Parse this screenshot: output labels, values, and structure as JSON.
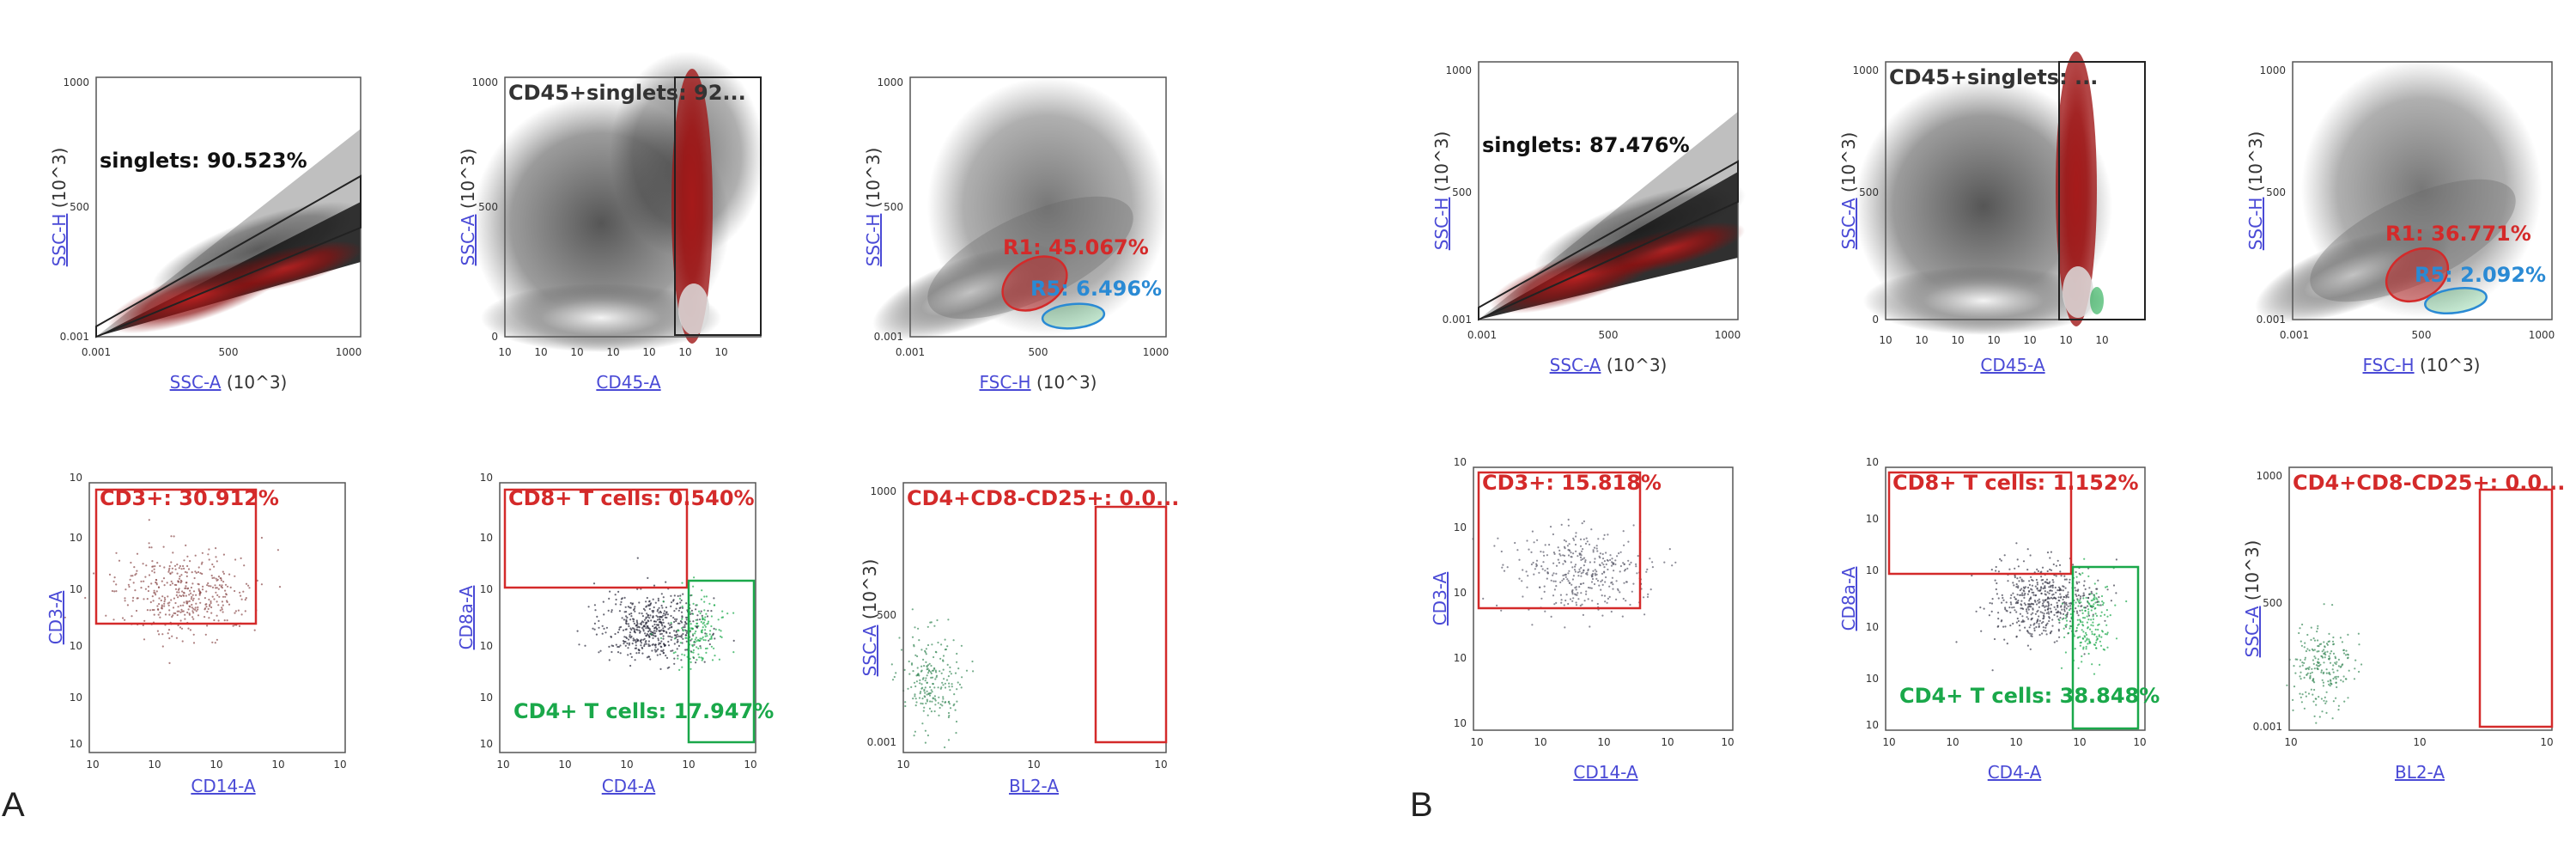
{
  "panel_labels": {
    "A": "A",
    "B": "B"
  },
  "axis_titles": {
    "ssc_h": "SSC-H",
    "ssc_a": "SSC-A",
    "cd45_a": "CD45-A",
    "fsc_h": "FSC-H",
    "cd3_a": "CD3-A",
    "cd14_a": "CD14-A",
    "cd8a_a": "CD8a-A",
    "cd4_a": "CD4-A",
    "bl2_a": "BL2-A",
    "unit": "(10^3)"
  },
  "ticks": {
    "linear_500": [
      "0.001",
      "500",
      "1000"
    ],
    "linear_500_short": [
      "0",
      "500",
      "1000"
    ],
    "log_x": [
      "10",
      "10",
      "10",
      "10",
      "10",
      "10",
      "10"
    ],
    "log_short": [
      "10",
      "10",
      "10",
      "10"
    ],
    "log_y": [
      "10",
      "10",
      "10",
      "10",
      "10",
      "10"
    ]
  },
  "colors": {
    "red_gate": "#d42a2a",
    "green_gate": "#1aa84a",
    "blue_gate": "#2a8ad4",
    "dense_red": "#a01818",
    "dense_black": "#111111",
    "axis_link": "#4a4ad6"
  },
  "chart_data": [
    {
      "id": "A1",
      "type": "scatter",
      "title": "",
      "xlabel": "SSC-A (10^3)",
      "ylabel": "SSC-H (10^3)",
      "xlim": [
        0,
        1000
      ],
      "ylim": [
        0,
        1000
      ],
      "gates": [
        {
          "name": "singlets",
          "label": "singlets: 90.523%",
          "percent": 90.523,
          "color": "black"
        }
      ]
    },
    {
      "id": "A2",
      "type": "scatter",
      "xlabel": "CD45-A",
      "ylabel": "SSC-A (10^3)",
      "x_scale": "log",
      "ylim": [
        0,
        1000
      ],
      "gates": [
        {
          "name": "CD45+singlets",
          "label": "CD45+singlets: 92...",
          "color": "black"
        }
      ]
    },
    {
      "id": "A3",
      "type": "scatter",
      "xlabel": "FSC-H (10^3)",
      "ylabel": "SSC-H (10^3)",
      "xlim": [
        0,
        1000
      ],
      "ylim": [
        0,
        1000
      ],
      "gates": [
        {
          "name": "R1",
          "label": "R1: 45.067%",
          "percent": 45.067,
          "color": "red"
        },
        {
          "name": "R5",
          "label": "R5: 6.496%",
          "percent": 6.496,
          "color": "blue"
        }
      ]
    },
    {
      "id": "A4",
      "type": "scatter",
      "xlabel": "CD14-A",
      "ylabel": "CD3-A",
      "x_scale": "log",
      "y_scale": "log",
      "gates": [
        {
          "name": "CD3+",
          "label": "CD3+: 30.912%",
          "percent": 30.912,
          "color": "red"
        }
      ]
    },
    {
      "id": "A5",
      "type": "scatter",
      "xlabel": "CD4-A",
      "ylabel": "CD8a-A",
      "x_scale": "log",
      "y_scale": "log",
      "gates": [
        {
          "name": "CD8+ T cells",
          "label": "CD8+ T cells: 0.540%",
          "percent": 0.54,
          "color": "red"
        },
        {
          "name": "CD4+ T cells",
          "label": "CD4+ T cells: 17.947%",
          "percent": 17.947,
          "color": "green"
        }
      ]
    },
    {
      "id": "A6",
      "type": "scatter",
      "xlabel": "BL2-A",
      "ylabel": "SSC-A (10^3)",
      "x_scale": "log",
      "ylim": [
        0,
        1000
      ],
      "gates": [
        {
          "name": "CD4+CD8-CD25+",
          "label": "CD4+CD8-CD25+: 0.0...",
          "color": "red"
        }
      ]
    },
    {
      "id": "B1",
      "type": "scatter",
      "xlabel": "SSC-A (10^3)",
      "ylabel": "SSC-H (10^3)",
      "xlim": [
        0,
        1000
      ],
      "ylim": [
        0,
        1000
      ],
      "gates": [
        {
          "name": "singlets",
          "label": "singlets: 87.476%",
          "percent": 87.476,
          "color": "black"
        }
      ]
    },
    {
      "id": "B2",
      "type": "scatter",
      "xlabel": "CD45-A",
      "ylabel": "SSC-A (10^3)",
      "x_scale": "log",
      "ylim": [
        0,
        1000
      ],
      "gates": [
        {
          "name": "CD45+singlets",
          "label": "CD45+singlets: ...",
          "color": "black"
        }
      ]
    },
    {
      "id": "B3",
      "type": "scatter",
      "xlabel": "FSC-H (10^3)",
      "ylabel": "SSC-H (10^3)",
      "xlim": [
        0,
        1000
      ],
      "ylim": [
        0,
        1000
      ],
      "gates": [
        {
          "name": "R1",
          "label": "R1: 36.771%",
          "percent": 36.771,
          "color": "red"
        },
        {
          "name": "R5",
          "label": "R5: 2.092%",
          "percent": 2.092,
          "color": "blue"
        }
      ]
    },
    {
      "id": "B4",
      "type": "scatter",
      "xlabel": "CD14-A",
      "ylabel": "CD3-A",
      "x_scale": "log",
      "y_scale": "log",
      "gates": [
        {
          "name": "CD3+",
          "label": "CD3+: 15.818%",
          "percent": 15.818,
          "color": "red"
        }
      ]
    },
    {
      "id": "B5",
      "type": "scatter",
      "xlabel": "CD4-A",
      "ylabel": "CD8a-A",
      "x_scale": "log",
      "y_scale": "log",
      "gates": [
        {
          "name": "CD8+ T cells",
          "label": "CD8+ T cells: 1.152%",
          "percent": 1.152,
          "color": "red"
        },
        {
          "name": "CD4+ T cells",
          "label": "CD4+ T cells: 38.848%",
          "percent": 38.848,
          "color": "green"
        }
      ]
    },
    {
      "id": "B6",
      "type": "scatter",
      "xlabel": "BL2-A",
      "ylabel": "SSC-A (10^3)",
      "x_scale": "log",
      "ylim": [
        0,
        1000
      ],
      "gates": [
        {
          "name": "CD4+CD8-CD25+",
          "label": "CD4+CD8-CD25+: 0.0...",
          "color": "red"
        }
      ]
    }
  ]
}
